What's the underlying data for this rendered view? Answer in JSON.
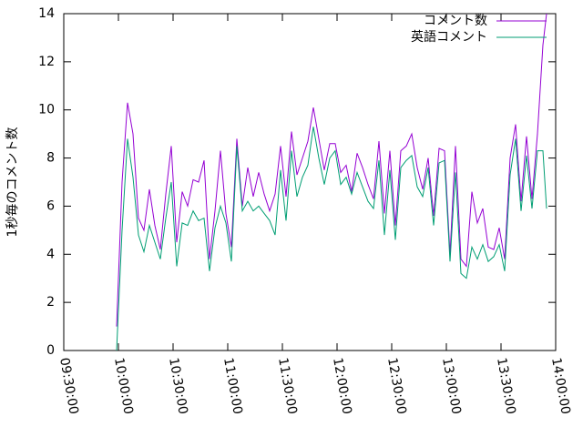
{
  "chart_data": {
    "type": "line",
    "y_label": "1秒毎のコメント数",
    "x": [
      "09:59:00",
      "10:02:00",
      "10:05:00",
      "10:08:00",
      "10:11:00",
      "10:14:00",
      "10:17:00",
      "10:20:00",
      "10:23:00",
      "10:26:00",
      "10:29:00",
      "10:32:00",
      "10:35:00",
      "10:38:00",
      "10:41:00",
      "10:44:00",
      "10:47:00",
      "10:50:00",
      "10:53:00",
      "10:56:00",
      "10:59:00",
      "11:02:00",
      "11:05:00",
      "11:08:00",
      "11:11:00",
      "11:14:00",
      "11:17:00",
      "11:20:00",
      "11:23:00",
      "11:26:00",
      "11:29:00",
      "11:32:00",
      "11:35:00",
      "11:38:00",
      "11:41:00",
      "11:44:00",
      "11:47:00",
      "11:50:00",
      "11:53:00",
      "11:56:00",
      "11:59:00",
      "12:02:00",
      "12:05:00",
      "12:08:00",
      "12:11:00",
      "12:14:00",
      "12:17:00",
      "12:20:00",
      "12:23:00",
      "12:26:00",
      "12:29:00",
      "12:32:00",
      "12:35:00",
      "12:38:00",
      "12:41:00",
      "12:44:00",
      "12:47:00",
      "12:50:00",
      "12:53:00",
      "12:56:00",
      "12:59:00",
      "13:02:00",
      "13:05:00",
      "13:08:00",
      "13:11:00",
      "13:14:00",
      "13:17:00",
      "13:20:00",
      "13:23:00",
      "13:26:00",
      "13:29:00",
      "13:32:00",
      "13:35:00",
      "13:38:00",
      "13:41:00",
      "13:44:00",
      "13:47:00",
      "13:50:00",
      "13:53:00",
      "13:55:00"
    ],
    "series": [
      {
        "name": "コメント数",
        "color": "#9400d3",
        "values": [
          1.0,
          7.0,
          10.3,
          9.0,
          5.5,
          5.0,
          6.7,
          5.2,
          4.2,
          6.5,
          8.5,
          4.5,
          6.6,
          6.0,
          7.1,
          7.0,
          7.9,
          3.8,
          5.8,
          8.3,
          5.7,
          4.3,
          8.8,
          6.0,
          7.6,
          6.4,
          7.4,
          6.5,
          5.8,
          6.5,
          8.5,
          6.4,
          9.1,
          7.3,
          8.0,
          8.7,
          10.1,
          8.8,
          7.5,
          8.6,
          8.6,
          7.4,
          7.7,
          6.6,
          8.2,
          7.6,
          6.9,
          6.3,
          8.7,
          5.7,
          8.3,
          5.2,
          8.3,
          8.5,
          9.0,
          7.6,
          6.7,
          8.0,
          5.6,
          8.4,
          8.3,
          4.0,
          8.5,
          3.8,
          3.5,
          6.6,
          5.3,
          5.9,
          4.3,
          4.2,
          5.1,
          3.8,
          8.0,
          9.4,
          6.2,
          8.9,
          6.3,
          9.0,
          12.7,
          14.0
        ]
      },
      {
        "name": "英語コメント",
        "color": "#009e73",
        "values": [
          0,
          5.0,
          8.8,
          7.2,
          4.8,
          4.1,
          5.2,
          4.5,
          3.8,
          5.5,
          7.0,
          3.5,
          5.3,
          5.2,
          5.8,
          5.4,
          5.5,
          3.3,
          5.1,
          6.0,
          5.3,
          3.7,
          8.5,
          5.8,
          6.2,
          5.8,
          6.0,
          5.7,
          5.4,
          4.8,
          7.5,
          5.4,
          8.3,
          6.4,
          7.2,
          7.7,
          9.3,
          8.0,
          6.9,
          8.0,
          8.3,
          6.9,
          7.2,
          6.5,
          7.4,
          6.8,
          6.2,
          5.9,
          7.9,
          4.8,
          7.5,
          4.6,
          7.6,
          7.9,
          8.1,
          6.8,
          6.4,
          7.6,
          5.2,
          7.8,
          7.9,
          3.7,
          7.4,
          3.2,
          3.0,
          4.3,
          3.8,
          4.4,
          3.7,
          3.9,
          4.4,
          3.3,
          7.3,
          8.8,
          5.8,
          8.1,
          5.9,
          8.3,
          8.3,
          5.9
        ]
      }
    ],
    "xlim": [
      "09:30:00",
      "14:00:00"
    ],
    "xticks": [
      "09:30:00",
      "10:00:00",
      "10:30:00",
      "11:00:00",
      "11:30:00",
      "12:00:00",
      "12:30:00",
      "13:00:00",
      "13:30:00",
      "14:00:00"
    ],
    "ylim": [
      0,
      14
    ],
    "yticks": [
      0,
      2,
      4,
      6,
      8,
      10,
      12,
      14
    ],
    "legend": "top-right"
  }
}
